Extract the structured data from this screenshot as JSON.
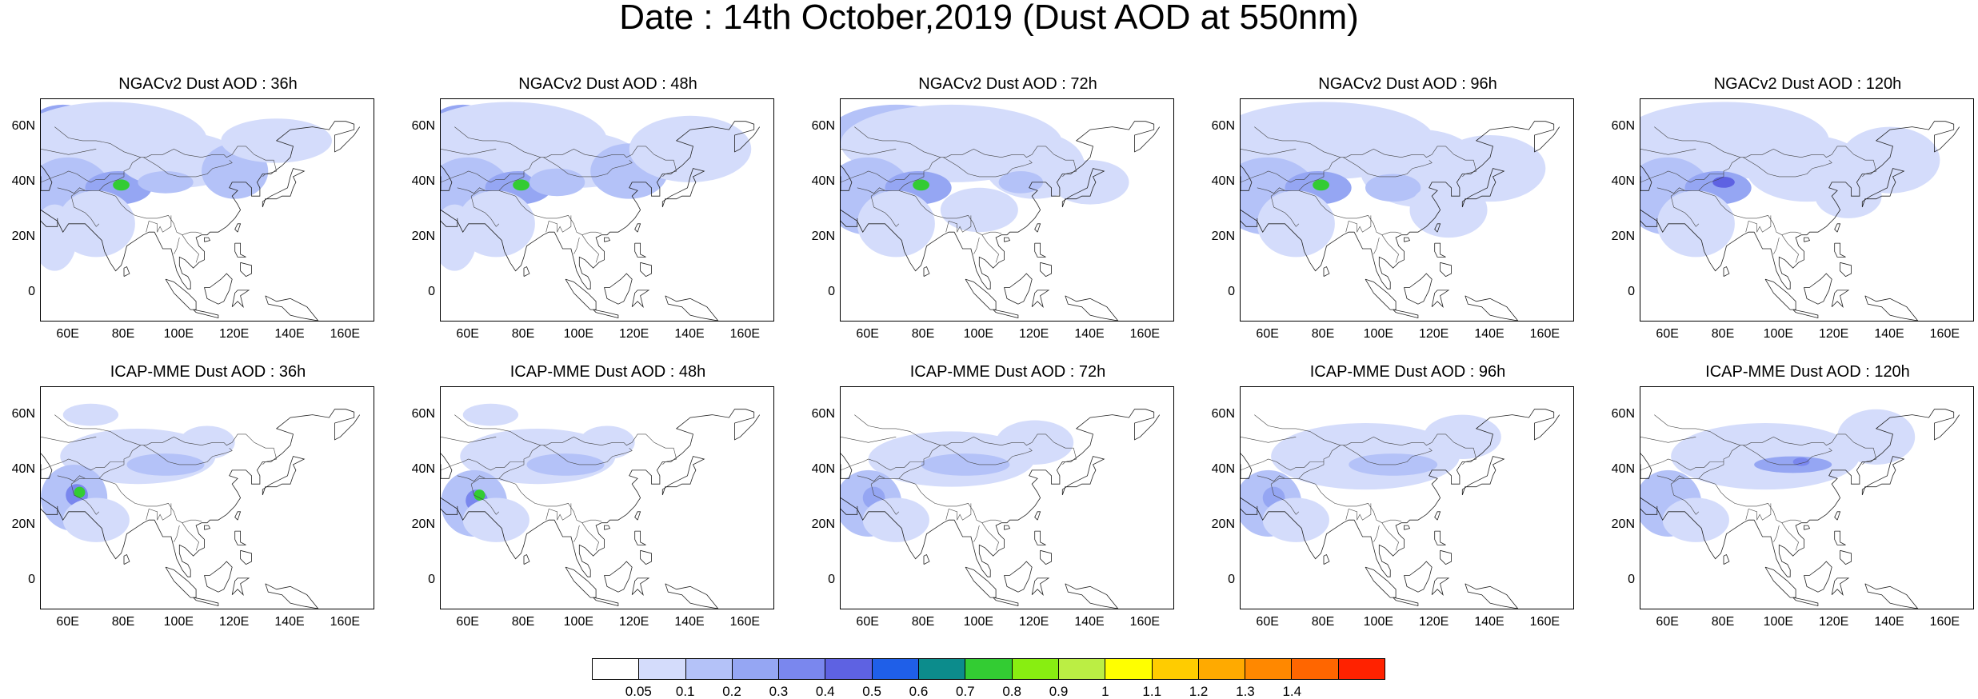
{
  "title": "Date : 14th October,2019 (Dust AOD at 550nm)",
  "map_extent": {
    "lon": [
      50,
      170
    ],
    "lat": [
      -10,
      70
    ]
  },
  "lon_ticks": [
    "60E",
    "80E",
    "100E",
    "120E",
    "140E",
    "160E"
  ],
  "lat_ticks": [
    "60N",
    "40N",
    "20N",
    "0"
  ],
  "panels": [
    {
      "title": "NGACv2 Dust AOD : 36h",
      "model": "NGACv2",
      "lead": "36h"
    },
    {
      "title": "NGACv2 Dust AOD : 48h",
      "model": "NGACv2",
      "lead": "48h"
    },
    {
      "title": "NGACv2 Dust AOD : 72h",
      "model": "NGACv2",
      "lead": "72h"
    },
    {
      "title": "NGACv2 Dust AOD : 96h",
      "model": "NGACv2",
      "lead": "96h"
    },
    {
      "title": "NGACv2 Dust AOD : 120h",
      "model": "NGACv2",
      "lead": "120h"
    },
    {
      "title": "ICAP-MME Dust AOD : 36h",
      "model": "ICAP-MME",
      "lead": "36h"
    },
    {
      "title": "ICAP-MME Dust AOD : 48h",
      "model": "ICAP-MME",
      "lead": "48h"
    },
    {
      "title": "ICAP-MME Dust AOD : 72h",
      "model": "ICAP-MME",
      "lead": "72h"
    },
    {
      "title": "ICAP-MME Dust AOD : 96h",
      "model": "ICAP-MME",
      "lead": "96h"
    },
    {
      "title": "ICAP-MME Dust AOD : 120h",
      "model": "ICAP-MME",
      "lead": "120h"
    }
  ],
  "colorbar": {
    "colors": [
      "#ffffff",
      "#d4dcfb",
      "#b4c2f8",
      "#95a6f3",
      "#7a87ee",
      "#5e62e2",
      "#1f5fe8",
      "#0c8c8c",
      "#33cc33",
      "#88ee11",
      "#bbee44",
      "#ffff00",
      "#ffcc00",
      "#ffaa00",
      "#ff8800",
      "#ff6600",
      "#ff2200"
    ],
    "labels": [
      "0.05",
      "0.1",
      "0.2",
      "0.3",
      "0.4",
      "0.5",
      "0.6",
      "0.7",
      "0.8",
      "0.9",
      "1",
      "1.1",
      "1.2",
      "1.3",
      "1.4"
    ]
  }
}
